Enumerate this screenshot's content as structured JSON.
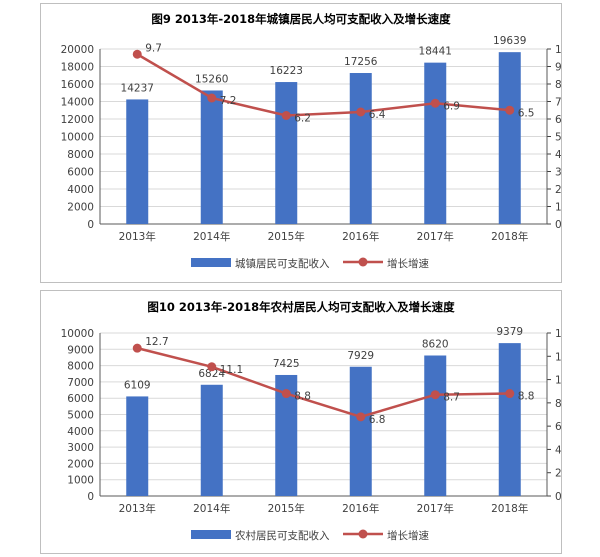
{
  "chart_data": [
    {
      "type": "bar+line",
      "title": "图9 2013年-2018年城镇居民人均可支配收入及增长速度",
      "categories": [
        "2013年",
        "2014年",
        "2015年",
        "2016年",
        "2017年",
        "2018年"
      ],
      "series": [
        {
          "name": "城镇居民可支配收入",
          "type": "bar",
          "axis": "left",
          "values": [
            14237,
            15260,
            16223,
            17256,
            18441,
            19639
          ]
        },
        {
          "name": "增长增速",
          "type": "line",
          "axis": "right",
          "values": [
            9.7,
            7.2,
            6.2,
            6.4,
            6.9,
            6.5
          ]
        }
      ],
      "ylim_left": [
        0,
        20000
      ],
      "ystep_left": 2000,
      "ylim_right": [
        0,
        10
      ],
      "ystep_right": 1,
      "legend": "bottom",
      "colors": {
        "bar": "#4472c4",
        "line": "#c0504d"
      }
    },
    {
      "type": "bar+line",
      "title": "图10 2013年-2018年农村居民人均可支配收入及增长速度",
      "categories": [
        "2013年",
        "2014年",
        "2015年",
        "2016年",
        "2017年",
        "2018年"
      ],
      "series": [
        {
          "name": "农村居民可支配收入",
          "type": "bar",
          "axis": "left",
          "values": [
            6109,
            6824,
            7425,
            7929,
            8620,
            9379
          ]
        },
        {
          "name": "增长增速",
          "type": "line",
          "axis": "right",
          "values": [
            12.7,
            11.1,
            8.8,
            6.8,
            8.7,
            8.8
          ]
        }
      ],
      "ylim_left": [
        0,
        10000
      ],
      "ystep_left": 1000,
      "ylim_right": [
        0,
        14
      ],
      "ystep_right": 2,
      "legend": "bottom",
      "colors": {
        "bar": "#4472c4",
        "line": "#c0504d"
      }
    }
  ]
}
